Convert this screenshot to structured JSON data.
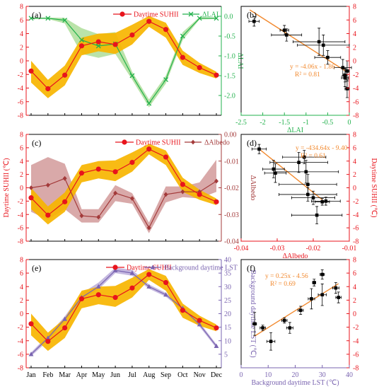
{
  "colors": {
    "suhii": "#e8141c",
    "suhii_band": "#f7b500",
    "lai": "#22b14c",
    "lai_band": "#a9dc94",
    "albedo": "#a33a3a",
    "albedo_band": "#cf9393",
    "lst": "#7a64b0",
    "lst_band": "#b7a8d8",
    "fit": "#f28a30",
    "axis": "#000000"
  },
  "chart_data": [
    {
      "id": "a",
      "panel_label": "(a)",
      "type": "line",
      "x": [
        "Jan",
        "Feb",
        "Mar",
        "Apr",
        "May",
        "Jun",
        "Jul",
        "Aug",
        "Sep",
        "Oct",
        "Nov",
        "Dec"
      ],
      "left_axis": {
        "ylim": [
          -8,
          8
        ],
        "ticks": [
          -8,
          -6,
          -4,
          -2,
          0,
          2,
          4,
          6,
          8
        ],
        "label": ""
      },
      "right_axis": {
        "ylim": [
          -2.5,
          0.25
        ],
        "ticks": [
          0.0,
          -0.5,
          -1.0,
          -1.5,
          -2.0
        ],
        "tick_labels": [
          "0.0",
          "-0.5",
          "-1.0",
          "-1.5",
          "-2.0"
        ],
        "label": "ΔLAI"
      },
      "series": [
        {
          "name": "Daytime SUHII",
          "axis": "left",
          "marker": "circle",
          "values": [
            -1.5,
            -4.1,
            -2.1,
            2.2,
            2.8,
            2.4,
            3.8,
            5.8,
            4.6,
            0.5,
            -1.0,
            -2.1
          ],
          "band_low": [
            -3.2,
            -5.5,
            -3.6,
            0.8,
            1.4,
            1.0,
            2.4,
            5.0,
            3.4,
            -0.6,
            -1.8,
            -2.6
          ],
          "band_high": [
            0.0,
            -2.8,
            -0.7,
            3.4,
            4.0,
            4.1,
            5.3,
            6.6,
            5.6,
            1.5,
            -0.3,
            -1.6
          ]
        },
        {
          "name": "ΔLAI",
          "axis": "right",
          "marker": "x",
          "values": [
            -0.05,
            -0.05,
            -0.1,
            -0.6,
            -0.75,
            -0.7,
            -1.5,
            -2.2,
            -1.6,
            -0.5,
            -0.05,
            -0.05
          ],
          "band_low": [
            -0.07,
            -0.07,
            -0.18,
            -0.95,
            -1.05,
            -0.95,
            -1.6,
            -2.3,
            -1.7,
            -0.6,
            -0.08,
            -0.07
          ],
          "band_high": [
            -0.03,
            -0.03,
            -0.04,
            -0.3,
            -0.45,
            -0.4,
            -1.4,
            -2.1,
            -1.5,
            -0.4,
            -0.02,
            -0.03
          ]
        }
      ]
    },
    {
      "id": "b",
      "panel_label": "(b)",
      "type": "scatter",
      "xlabel": "ΔLAI",
      "xlim": [
        -2.5,
        0
      ],
      "xticks": [
        -2.5,
        -2.0,
        -1.5,
        -1.0,
        -0.5,
        0.0
      ],
      "xtick_labels": [
        "-2.5",
        "-2",
        "-1.5",
        "-1",
        "-0.5",
        "0"
      ],
      "ylim": [
        -8,
        8
      ],
      "yticks": [
        -8,
        -6,
        -4,
        -2,
        0,
        2,
        4,
        6,
        8
      ],
      "equation": "y = -4.06x - 1.86",
      "r2": "R² = 0.81",
      "fit": {
        "slope": -4.06,
        "intercept": -1.86,
        "x_range": [
          -2.3,
          -0.05
        ]
      },
      "points": [
        {
          "x": -2.2,
          "y": 5.8,
          "xerr": 0.12,
          "yerr": 0.7
        },
        {
          "x": -1.5,
          "y": 4.5,
          "xerr": 0.1,
          "yerr": 0.7
        },
        {
          "x": -1.45,
          "y": 3.8,
          "xerr": 0.35,
          "yerr": 0.9
        },
        {
          "x": -0.7,
          "y": 2.8,
          "xerr": 0.6,
          "yerr": 2.0
        },
        {
          "x": -0.6,
          "y": 2.3,
          "xerr": 0.6,
          "yerr": 1.5
        },
        {
          "x": -0.5,
          "y": 0.5,
          "xerr": 0.3,
          "yerr": 1.0
        },
        {
          "x": -0.15,
          "y": -1.0,
          "xerr": 0.2,
          "yerr": 1.2
        },
        {
          "x": -0.1,
          "y": -2.1,
          "xerr": 0.05,
          "yerr": 1.0
        },
        {
          "x": -0.05,
          "y": -1.5,
          "xerr": 0.05,
          "yerr": 1.5
        },
        {
          "x": -0.1,
          "y": -2.5,
          "xerr": 0.08,
          "yerr": 1.3
        },
        {
          "x": -0.05,
          "y": -4.1,
          "xerr": 0.05,
          "yerr": 1.3
        }
      ]
    },
    {
      "id": "c",
      "panel_label": "(c)",
      "type": "line",
      "x": [
        "Jan",
        "Feb",
        "Mar",
        "Apr",
        "May",
        "Jun",
        "Jul",
        "Aug",
        "Sep",
        "Oct",
        "Nov",
        "Dec"
      ],
      "left_axis": {
        "ylim": [
          -8,
          8
        ],
        "ticks": [
          -8,
          -6,
          -4,
          -2,
          0,
          2,
          4,
          6,
          8
        ],
        "label": "Daytime SUHII (℃)"
      },
      "right_axis": {
        "ylim": [
          -0.04,
          0.0
        ],
        "ticks": [
          0.0,
          -0.01,
          -0.02,
          -0.03,
          -0.04
        ],
        "tick_labels": [
          "0.00",
          "-0.01",
          "-0.02",
          "-0.03",
          "-0.04"
        ],
        "label": "ΔAlbedo"
      },
      "series": [
        {
          "name": "Daytime SUHII",
          "axis": "left",
          "marker": "circle",
          "values": [
            -1.5,
            -4.1,
            -2.1,
            2.2,
            2.8,
            2.4,
            3.8,
            5.8,
            4.6,
            0.5,
            -1.0,
            -2.1
          ],
          "band_low": [
            -3.2,
            -5.5,
            -3.6,
            0.8,
            1.4,
            1.0,
            2.4,
            5.0,
            3.4,
            -0.6,
            -1.8,
            -2.6
          ],
          "band_high": [
            0.0,
            -2.8,
            -0.7,
            3.4,
            4.0,
            4.1,
            5.3,
            6.6,
            5.6,
            1.5,
            -0.3,
            -1.6
          ]
        },
        {
          "name": "ΔAlbedo",
          "axis": "right",
          "marker": "diamond",
          "values": [
            -0.02,
            -0.019,
            -0.0165,
            -0.0305,
            -0.031,
            -0.022,
            -0.024,
            -0.035,
            -0.0225,
            -0.0215,
            -0.0215,
            -0.0175
          ],
          "band_low": [
            -0.029,
            -0.032,
            -0.028,
            -0.033,
            -0.033,
            -0.025,
            -0.026,
            -0.037,
            -0.0255,
            -0.0235,
            -0.024,
            -0.0215
          ],
          "band_high": [
            -0.0115,
            -0.0085,
            -0.011,
            -0.028,
            -0.028,
            -0.019,
            -0.022,
            -0.033,
            -0.0195,
            -0.0195,
            -0.018,
            -0.0095
          ]
        }
      ]
    },
    {
      "id": "d",
      "panel_label": "(d)",
      "type": "scatter",
      "xlabel": "ΔAlbedo",
      "xlim": [
        -0.04,
        -0.01
      ],
      "xticks": [
        -0.04,
        -0.03,
        -0.02,
        -0.01
      ],
      "xtick_labels": [
        "-0.04",
        "-0.03",
        "-0.02",
        "-0.01"
      ],
      "ylim": [
        -8,
        8
      ],
      "yticks": [
        -8,
        -6,
        -4,
        -2,
        0,
        2,
        4,
        6,
        8
      ],
      "ylabel": "Daytime SUHII (℃)",
      "equation": "y = -434.64x - 9.40",
      "r2": "R² = 0.61",
      "fit": {
        "slope": -434.64,
        "intercept": -9.4,
        "x_range": [
          -0.035,
          -0.0175
        ]
      },
      "points": [
        {
          "x": -0.035,
          "y": 5.8,
          "xerr": 0.002,
          "yerr": 0.7
        },
        {
          "x": -0.031,
          "y": 2.8,
          "xerr": 0.003,
          "yerr": 1.3
        },
        {
          "x": -0.0305,
          "y": 2.2,
          "xerr": 0.003,
          "yerr": 1.4
        },
        {
          "x": -0.024,
          "y": 3.8,
          "xerr": 0.008,
          "yerr": 1.5
        },
        {
          "x": -0.0225,
          "y": 4.6,
          "xerr": 0.006,
          "yerr": 1.0
        },
        {
          "x": -0.022,
          "y": 2.4,
          "xerr": 0.009,
          "yerr": 1.7
        },
        {
          "x": -0.0215,
          "y": 0.5,
          "xerr": 0.008,
          "yerr": 1.5
        },
        {
          "x": -0.0215,
          "y": -1.0,
          "xerr": 0.008,
          "yerr": 1.0
        },
        {
          "x": -0.02,
          "y": -1.5,
          "xerr": 0.006,
          "yerr": 1.0
        },
        {
          "x": -0.019,
          "y": -4.1,
          "xerr": 0.007,
          "yerr": 1.3
        },
        {
          "x": -0.0175,
          "y": -2.1,
          "xerr": 0.002,
          "yerr": 0.5
        },
        {
          "x": -0.0165,
          "y": -2.0,
          "xerr": 0.004,
          "yerr": 0.6
        }
      ]
    },
    {
      "id": "e",
      "panel_label": "(e)",
      "type": "line",
      "x": [
        "Jan",
        "Feb",
        "Mar",
        "Apr",
        "May",
        "Jun",
        "Jul",
        "Aug",
        "Sep",
        "Oct",
        "Nov",
        "Dec"
      ],
      "left_axis": {
        "ylim": [
          -8,
          8
        ],
        "ticks": [
          -8,
          -6,
          -4,
          -2,
          0,
          2,
          4,
          6,
          8
        ],
        "label": ""
      },
      "right_axis": {
        "ylim": [
          0,
          40
        ],
        "ticks": [
          5,
          10,
          15,
          20,
          25,
          30,
          35,
          40
        ],
        "tick_labels": [
          "5",
          "10",
          "15",
          "20",
          "25",
          "30",
          "35",
          "40"
        ],
        "label": "Background daytime LST (℃)"
      },
      "series": [
        {
          "name": "Daytime SUHII",
          "axis": "left",
          "marker": "circle",
          "values": [
            -1.5,
            -4.1,
            -2.1,
            2.2,
            2.8,
            2.4,
            3.8,
            5.8,
            4.6,
            0.5,
            -1.0,
            -2.1
          ],
          "band_low": [
            -3.2,
            -5.5,
            -3.6,
            0.8,
            1.4,
            1.0,
            2.4,
            5.0,
            3.4,
            -0.6,
            -1.8,
            -2.6
          ],
          "band_high": [
            0.0,
            -2.8,
            -0.7,
            3.4,
            4.0,
            4.1,
            5.3,
            6.6,
            5.6,
            1.5,
            -0.3,
            -1.6
          ]
        },
        {
          "name": "Background daytime LST",
          "axis": "right",
          "marker": "triangle",
          "values": [
            5,
            11,
            18,
            26,
            30,
            36,
            35,
            30,
            27,
            22,
            16,
            8
          ],
          "band_low": [
            4.3,
            10.0,
            17.0,
            25.0,
            29.0,
            35.0,
            34.0,
            29.2,
            26.3,
            21.2,
            15.2,
            7.3
          ],
          "band_high": [
            5.7,
            12.0,
            19.0,
            27.5,
            31.5,
            37.0,
            36.2,
            30.8,
            27.7,
            22.8,
            16.8,
            8.7
          ]
        }
      ]
    },
    {
      "id": "f",
      "panel_label": "(f)",
      "type": "scatter",
      "xlabel": "Background daytime LST (℃)",
      "xlim": [
        0,
        40
      ],
      "xticks": [
        0,
        10,
        20,
        30,
        40
      ],
      "xtick_labels": [
        "0",
        "10",
        "20",
        "30",
        "40"
      ],
      "ylim": [
        -8,
        8
      ],
      "yticks": [
        -8,
        -6,
        -4,
        -2,
        0,
        2,
        4,
        6,
        8
      ],
      "equation": "y = 0.25x - 4.56",
      "r2": "R² = 0.69",
      "fit": {
        "slope": 0.25,
        "intercept": -4.56,
        "x_range": [
          5,
          36
        ]
      },
      "points": [
        {
          "x": 5,
          "y": -1.5,
          "xerr": 0.7,
          "yerr": 1.7
        },
        {
          "x": 8,
          "y": -2.1,
          "xerr": 1.0,
          "yerr": 0.4
        },
        {
          "x": 11,
          "y": -4.1,
          "xerr": 1.5,
          "yerr": 1.3
        },
        {
          "x": 16,
          "y": -1.0,
          "xerr": 1.0,
          "yerr": 0.4
        },
        {
          "x": 18,
          "y": -2.1,
          "xerr": 1.2,
          "yerr": 0.8
        },
        {
          "x": 22,
          "y": 0.5,
          "xerr": 1.0,
          "yerr": 0.6
        },
        {
          "x": 26,
          "y": 2.2,
          "xerr": 1.2,
          "yerr": 1.5
        },
        {
          "x": 27,
          "y": 4.6,
          "xerr": 0.6,
          "yerr": 0.5
        },
        {
          "x": 30,
          "y": 5.8,
          "xerr": 0.8,
          "yerr": 0.7
        },
        {
          "x": 30,
          "y": 2.8,
          "xerr": 1.5,
          "yerr": 1.6
        },
        {
          "x": 35,
          "y": 3.8,
          "xerr": 1.2,
          "yerr": 0.8
        },
        {
          "x": 36,
          "y": 2.4,
          "xerr": 1.0,
          "yerr": 0.8
        }
      ]
    }
  ]
}
